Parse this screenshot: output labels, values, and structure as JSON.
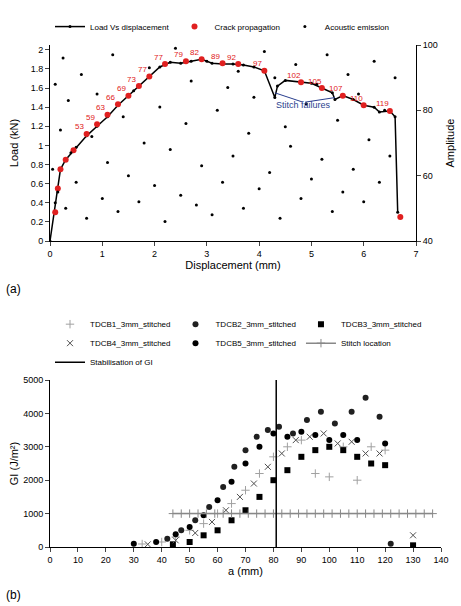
{
  "chart_data": [
    {
      "type": "line",
      "caption": "(a)",
      "x_label": "Displacement (mm)",
      "y_label": "Load (kN)",
      "y2_label": "Amplitude",
      "xlim": [
        0,
        7
      ],
      "xticks": [
        0,
        1,
        2,
        3,
        4,
        5,
        6,
        7
      ],
      "ylim": [
        0,
        2.05
      ],
      "yticks": [
        0,
        0.2,
        0.4,
        0.6,
        0.8,
        1,
        1.2,
        1.4,
        1.6,
        1.8,
        2
      ],
      "y2lim": [
        40,
        100
      ],
      "y2ticks": [
        40,
        60,
        80,
        100
      ],
      "grid": false,
      "legend": "top",
      "series": [
        {
          "name": "Load Vs displacement",
          "type": "line",
          "color": "#000000",
          "marker": "dot",
          "x": [
            0,
            0.1,
            0.2,
            0.3,
            0.5,
            0.7,
            0.9,
            1.1,
            1.3,
            1.5,
            1.7,
            1.9,
            2.1,
            2.3,
            2.5,
            2.7,
            2.9,
            3.1,
            3.3,
            3.5,
            3.7,
            3.9,
            4.1,
            4.3,
            4.35,
            4.5,
            4.8,
            5.0,
            5.2,
            5.4,
            5.45,
            5.6,
            5.8,
            6.0,
            6.2,
            6.3,
            6.5,
            6.6,
            6.65
          ],
          "values": [
            0,
            0.4,
            0.75,
            0.85,
            0.98,
            1.1,
            1.2,
            1.3,
            1.42,
            1.52,
            1.62,
            1.72,
            1.82,
            1.87,
            1.86,
            1.88,
            1.9,
            1.86,
            1.85,
            1.85,
            1.84,
            1.82,
            1.78,
            1.5,
            1.62,
            1.68,
            1.66,
            1.65,
            1.6,
            1.55,
            1.48,
            1.52,
            1.48,
            1.42,
            1.4,
            1.35,
            1.36,
            1.3,
            0.3
          ]
        },
        {
          "name": "Crack propagation",
          "type": "scatter",
          "color": "#e02020",
          "marker": "circle",
          "x": [
            0.1,
            0.15,
            0.2,
            0.3,
            0.45,
            0.7,
            0.9,
            1.1,
            1.3,
            1.5,
            1.7,
            1.9,
            2.2,
            2.6,
            2.9,
            3.3,
            3.6,
            4.1,
            4.8,
            5.2,
            5.6,
            6.0,
            6.5,
            6.7
          ],
          "values": [
            0.3,
            0.55,
            0.75,
            0.85,
            0.95,
            1.12,
            1.22,
            1.32,
            1.43,
            1.52,
            1.62,
            1.72,
            1.85,
            1.88,
            1.9,
            1.86,
            1.85,
            1.78,
            1.66,
            1.6,
            1.52,
            1.42,
            1.36,
            0.25
          ],
          "labels": [
            null,
            null,
            null,
            null,
            null,
            "53",
            "59",
            "63",
            "66",
            "69",
            "73",
            "77",
            "77",
            "79",
            "82",
            "89",
            "92",
            "97",
            "102",
            "105",
            "107",
            "110",
            "119",
            null
          ]
        },
        {
          "name": "Acoustic emission",
          "type": "scatter",
          "color": "#000000",
          "marker": "dot",
          "axis": "y2",
          "x": [
            0.05,
            0.1,
            0.15,
            0.2,
            0.25,
            0.3,
            0.35,
            0.4,
            0.5,
            0.6,
            0.7,
            0.8,
            0.9,
            1.0,
            1.1,
            1.2,
            1.3,
            1.4,
            1.5,
            1.6,
            1.7,
            1.8,
            1.9,
            2.0,
            2.1,
            2.2,
            2.3,
            2.4,
            2.5,
            2.6,
            2.7,
            2.8,
            2.9,
            3.0,
            3.1,
            3.2,
            3.3,
            3.4,
            3.5,
            3.6,
            3.7,
            3.8,
            3.9,
            4.0,
            4.1,
            4.2,
            4.3,
            4.4,
            4.5,
            4.6,
            4.7,
            4.8,
            4.9,
            5.0,
            5.1,
            5.2,
            5.3,
            5.4,
            5.5,
            5.6,
            5.7,
            5.8,
            5.9,
            6.0,
            6.1,
            6.2,
            6.3,
            6.4,
            6.5,
            6.6
          ],
          "values": [
            62,
            88,
            55,
            74,
            96,
            50,
            83,
            67,
            58,
            91,
            47,
            72,
            85,
            53,
            64,
            97,
            49,
            78,
            60,
            86,
            52,
            70,
            93,
            57,
            81,
            46,
            68,
            99,
            54,
            76,
            89,
            51,
            63,
            95,
            48,
            80,
            58,
            87,
            66,
            92,
            50,
            73,
            84,
            56,
            98,
            61,
            90,
            47,
            75,
            69,
            94,
            53,
            82,
            59,
            88,
            65,
            97,
            49,
            77,
            55,
            91,
            62,
            85,
            52,
            71,
            95,
            58,
            80,
            66,
            90
          ]
        }
      ],
      "annotations": [
        {
          "text": "Stitch failures",
          "x": 4.85,
          "y": 1.42,
          "color": "#2a3f8f",
          "arrows_to": [
            {
              "x": 4.3,
              "y": 1.55
            },
            {
              "x": 5.45,
              "y": 1.5
            }
          ]
        }
      ]
    },
    {
      "type": "scatter",
      "caption": "(b)",
      "x_label": "a (mm)",
      "y_label": "GI (J/m²)",
      "xlim": [
        0,
        140
      ],
      "xticks": [
        0,
        10,
        20,
        30,
        40,
        50,
        60,
        70,
        80,
        90,
        100,
        110,
        120,
        130,
        140
      ],
      "ylim": [
        0,
        5000
      ],
      "yticks": [
        0,
        1000,
        2000,
        3000,
        4000,
        5000
      ],
      "grid": false,
      "legend": "top",
      "series": [
        {
          "name": "TDCB1_3mm_stitched",
          "type": "scatter",
          "color": "#a0a0a0",
          "marker": "cross",
          "x": [
            33,
            40,
            45,
            50,
            55,
            60,
            65,
            70,
            75,
            80,
            85,
            90,
            95,
            100,
            105,
            110,
            115,
            120
          ],
          "values": [
            90,
            150,
            300,
            500,
            700,
            1000,
            1300,
            1700,
            2200,
            2700,
            3000,
            3200,
            2200,
            2100,
            3000,
            2000,
            3000,
            2900
          ]
        },
        {
          "name": "TDCB2_3mm_stitched",
          "type": "scatter",
          "color": "#202020",
          "marker": "circle",
          "x": [
            42,
            47,
            52,
            57,
            62,
            66,
            70,
            74,
            78,
            82,
            87,
            92,
            97,
            102,
            108,
            113,
            118,
            122
          ],
          "values": [
            250,
            500,
            800,
            1200,
            1800,
            2400,
            2900,
            3300,
            3500,
            3600,
            3400,
            3800,
            4050,
            3700,
            4050,
            4470,
            3900,
            100
          ]
        },
        {
          "name": "TDCB3_3mm_stitched",
          "type": "scatter",
          "color": "#000000",
          "marker": "square",
          "x": [
            44,
            50,
            55,
            60,
            65,
            70,
            75,
            80,
            85,
            90,
            95,
            100,
            105,
            110,
            115,
            120,
            130
          ],
          "values": [
            80,
            150,
            350,
            500,
            800,
            1100,
            1500,
            2000,
            2300,
            2700,
            2900,
            3000,
            2900,
            2700,
            2500,
            2450,
            50
          ]
        },
        {
          "name": "TDCB4_3mm_stitched",
          "type": "scatter",
          "color": "#505050",
          "marker": "x",
          "x": [
            35,
            45,
            52,
            58,
            63,
            68,
            73,
            78,
            83,
            88,
            93,
            98,
            103,
            108,
            113,
            118,
            130
          ],
          "values": [
            80,
            200,
            420,
            750,
            1100,
            1500,
            1900,
            2400,
            2800,
            3200,
            3300,
            3400,
            3100,
            3150,
            2800,
            2800,
            350
          ]
        },
        {
          "name": "TDCB5_3mm_stitched",
          "type": "scatter",
          "color": "#000000",
          "marker": "circle",
          "x": [
            30,
            38,
            45,
            50,
            55,
            60,
            65,
            70,
            75,
            80,
            85,
            90,
            95,
            100,
            105,
            110,
            120
          ],
          "values": [
            100,
            150,
            380,
            600,
            950,
            1400,
            1950,
            2500,
            3000,
            3400,
            3300,
            3450,
            3350,
            3200,
            3350,
            3200,
            3100
          ]
        },
        {
          "name": "Stitch location",
          "type": "line",
          "color": "#888888",
          "marker": "cross",
          "x": [
            44,
            47,
            50,
            53,
            56,
            59,
            62,
            65,
            68,
            71,
            74,
            77,
            80,
            83,
            86,
            89,
            92,
            95,
            98,
            101,
            104,
            107,
            110,
            113,
            116,
            119,
            122,
            125,
            128,
            131,
            134,
            137
          ],
          "values": [
            1000,
            1000,
            1000,
            1000,
            1000,
            1000,
            1000,
            1000,
            1000,
            1000,
            1000,
            1000,
            1000,
            1000,
            1000,
            1000,
            1000,
            1000,
            1000,
            1000,
            1000,
            1000,
            1000,
            1000,
            1000,
            1000,
            1000,
            1000,
            1000,
            1000,
            1000,
            1000
          ]
        },
        {
          "name": "Stabilisation of GI",
          "type": "line",
          "color": "#000000",
          "marker": "none",
          "line_style": "solid",
          "x": [
            81,
            81
          ],
          "values": [
            0,
            5000
          ]
        }
      ]
    }
  ]
}
